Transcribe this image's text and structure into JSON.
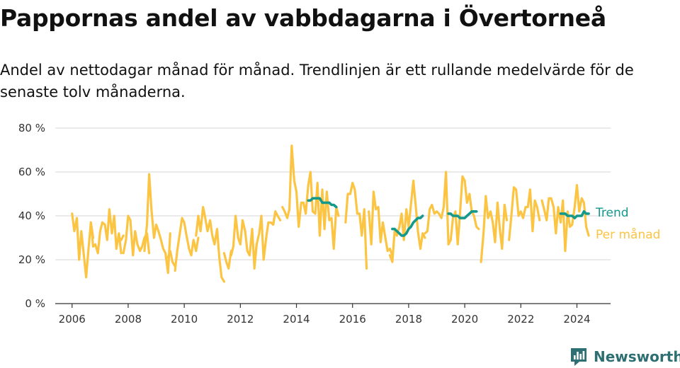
{
  "title": "Pappornas andel av vabbdagarna i Övertorneå",
  "subtitle": "Andel av nettodagar månad för månad. Trendlinjen är ett rullande medelvärde för de senaste tolv månaderna.",
  "brand": {
    "name": "Newsworthy",
    "icon": "bar-chart-logo-icon"
  },
  "colors": {
    "monthly": "#fcc443",
    "trend": "#14998a",
    "grid": "#dddddd",
    "axis": "#333333"
  },
  "chart_data": {
    "type": "line",
    "ylim": [
      0,
      80
    ],
    "yticks": [
      0,
      20,
      40,
      60,
      80
    ],
    "ytick_labels": [
      "0 %",
      "20 %",
      "40 %",
      "60 %",
      "80 %"
    ],
    "xlim": [
      2005.4,
      2025.2
    ],
    "xticks": [
      2006,
      2008,
      2010,
      2012,
      2014,
      2016,
      2018,
      2020,
      2022,
      2024
    ],
    "xtick_labels": [
      "2006",
      "2008",
      "2010",
      "2012",
      "2014",
      "2016",
      "2018",
      "2020",
      "2022",
      "2024"
    ],
    "grid": true,
    "legend_placement": "right-end-labels",
    "series": [
      {
        "name": "Per månad",
        "segments": [
          {
            "x": [
              2006.0,
              2006.08,
              2006.17,
              2006.25,
              2006.33,
              2006.42,
              2006.5,
              2006.58,
              2006.67,
              2006.75
            ],
            "y": [
              41,
              33,
              39,
              20,
              33,
              22,
              12,
              24,
              37,
              30
            ]
          },
          {
            "x": [
              2006.67,
              2006.75,
              2006.83,
              2006.92,
              2007.0,
              2007.08,
              2007.17,
              2007.25,
              2007.33,
              2007.42,
              2007.5,
              2007.58,
              2007.67,
              2007.75
            ],
            "y": [
              37,
              26,
              27,
              23,
              33,
              37,
              36,
              29,
              43,
              32,
              40,
              25,
              32,
              23
            ]
          },
          {
            "x": [
              2007.67,
              2007.75,
              2007.83
            ],
            "y": [
              30,
              29,
              31
            ]
          },
          {
            "x": [
              2007.83,
              2007.92,
              2008.0,
              2008.08,
              2008.17,
              2008.25,
              2008.33,
              2008.42,
              2008.5,
              2008.58,
              2008.67,
              2008.75
            ],
            "y": [
              23,
              29,
              40,
              38,
              22,
              33,
              27,
              24,
              26,
              30,
              32,
              23
            ]
          },
          {
            "x": [
              2008.58,
              2008.67,
              2008.75,
              2008.83,
              2008.92,
              2009.0,
              2009.08,
              2009.17,
              2009.25,
              2009.33,
              2009.42,
              2009.5
            ],
            "y": [
              24,
              36,
              59,
              43,
              30,
              36,
              33,
              29,
              25,
              23,
              14,
              32
            ]
          },
          {
            "x": [
              2009.42,
              2009.5,
              2009.58,
              2009.67
            ],
            "y": [
              21,
              24,
              19,
              17
            ]
          },
          {
            "x": [
              2009.67,
              2009.75,
              2009.83,
              2009.92,
              2010.0,
              2010.08,
              2010.17,
              2010.25,
              2010.33,
              2010.42,
              2010.5
            ],
            "y": [
              15,
              24,
              31,
              39,
              37,
              31,
              25,
              22,
              29,
              24,
              30
            ]
          },
          {
            "x": [
              2010.42,
              2010.5,
              2010.58,
              2010.67,
              2010.75,
              2010.83,
              2010.92,
              2011.0,
              2011.08,
              2011.17,
              2011.25,
              2011.33,
              2011.42
            ],
            "y": [
              31,
              40,
              33,
              44,
              39,
              33,
              38,
              31,
              27,
              34,
              21,
              12,
              10
            ]
          },
          {
            "x": [
              2011.42,
              2011.5,
              2011.58,
              2011.67
            ],
            "y": [
              23,
              19,
              16,
              24
            ]
          },
          {
            "x": [
              2011.67,
              2011.75,
              2011.83,
              2011.92,
              2012.0,
              2012.08,
              2012.17,
              2012.25,
              2012.33,
              2012.42,
              2012.5,
              2012.58
            ],
            "y": [
              22,
              26,
              40,
              30,
              27,
              38,
              33,
              24,
              22,
              34,
              17,
              27
            ]
          },
          {
            "x": [
              2012.5,
              2012.58,
              2012.67,
              2012.75,
              2012.83,
              2012.92,
              2013.0,
              2013.08,
              2013.17,
              2013.25
            ],
            "y": [
              16,
              27,
              32,
              40,
              20,
              30,
              37,
              37,
              36,
              42
            ]
          },
          {
            "x": [
              2013.17,
              2013.25,
              2013.33,
              2013.42
            ],
            "y": [
              36,
              42,
              40,
              38
            ]
          },
          {
            "x": [
              2013.5,
              2013.58,
              2013.67,
              2013.75,
              2013.83,
              2013.92,
              2014.0,
              2014.08,
              2014.17,
              2014.25,
              2014.33,
              2014.42,
              2014.5,
              2014.58,
              2014.67,
              2014.75,
              2014.83,
              2014.92,
              2015.0,
              2015.08,
              2015.17,
              2015.25,
              2015.33,
              2015.42,
              2015.5
            ],
            "y": [
              44,
              42,
              39,
              43,
              72,
              56,
              51,
              35,
              46,
              46,
              41,
              54,
              60,
              42,
              41,
              55,
              31,
              52,
              34,
              51,
              38,
              39,
              25,
              44,
              40
            ]
          },
          {
            "x": [
              2015.75,
              2015.83,
              2015.92,
              2016.0,
              2016.08,
              2016.17,
              2016.25,
              2016.33,
              2016.42,
              2016.5
            ],
            "y": [
              37,
              50,
              50,
              55,
              52,
              41,
              41,
              31,
              43,
              16
            ]
          },
          {
            "x": [
              2016.58,
              2016.67,
              2016.75,
              2016.83,
              2016.92,
              2017.0,
              2017.08,
              2017.17,
              2017.25,
              2017.33,
              2017.42
            ],
            "y": [
              42,
              27,
              51,
              43,
              44,
              28,
              37,
              30,
              24,
              25,
              22
            ]
          },
          {
            "x": [
              2017.33,
              2017.42,
              2017.5,
              2017.58,
              2017.67,
              2017.75,
              2017.83,
              2017.92,
              2018.0,
              2018.08,
              2018.17,
              2018.25,
              2018.33,
              2018.42,
              2018.5,
              2018.58
            ],
            "y": [
              22,
              19,
              33,
              31,
              35,
              41,
              29,
              43,
              35,
              45,
              56,
              45,
              33,
              25,
              32,
              30
            ]
          },
          {
            "x": [
              2018.58,
              2018.67,
              2018.75,
              2018.83,
              2018.92,
              2019.0,
              2019.08,
              2019.17,
              2019.25,
              2019.33,
              2019.42,
              2019.5,
              2019.58,
              2019.67,
              2019.75,
              2019.83,
              2019.92,
              2020.0,
              2020.08,
              2020.17,
              2020.25,
              2020.33,
              2020.42,
              2020.5
            ],
            "y": [
              32,
              33,
              43,
              45,
              41,
              42,
              41,
              39,
              44,
              60,
              27,
              29,
              39,
              42,
              27,
              41,
              58,
              56,
              46,
              50,
              42,
              40,
              35,
              34
            ]
          },
          {
            "x": [
              2020.58,
              2020.67,
              2020.75,
              2020.83,
              2020.92,
              2021.0,
              2021.08,
              2021.17,
              2021.25,
              2021.33,
              2021.42,
              2021.5
            ],
            "y": [
              19,
              32,
              49,
              39,
              42,
              37,
              28,
              46,
              34,
              25,
              45,
              38
            ]
          },
          {
            "x": [
              2021.58,
              2021.67,
              2021.75,
              2021.83,
              2021.92,
              2022.0,
              2022.08,
              2022.17,
              2022.25,
              2022.33,
              2022.42,
              2022.5,
              2022.58,
              2022.67
            ],
            "y": [
              29,
              41,
              53,
              52,
              40,
              42,
              39,
              44,
              44,
              52,
              33,
              47,
              44,
              38
            ]
          },
          {
            "x": [
              2022.75,
              2022.83,
              2022.92,
              2023.0,
              2023.08,
              2023.17,
              2023.25,
              2023.33,
              2023.42,
              2023.5,
              2023.58,
              2023.67,
              2023.75,
              2023.83,
              2023.92,
              2024.0,
              2024.08,
              2024.17,
              2024.25,
              2024.33,
              2024.42
            ],
            "y": [
              47,
              43,
              38,
              48,
              48,
              44,
              32,
              44,
              37,
              47,
              24,
              42,
              35,
              36,
              44,
              54,
              42,
              48,
              46,
              35,
              31
            ]
          }
        ]
      },
      {
        "name": "Trend",
        "segments": [
          {
            "x": [
              2014.42,
              2014.5,
              2014.58,
              2014.67,
              2014.75,
              2014.83,
              2014.92,
              2015.0,
              2015.08,
              2015.17,
              2015.25,
              2015.33,
              2015.42
            ],
            "y": [
              47,
              47,
              48,
              48,
              48,
              48,
              46,
              46,
              46,
              46,
              45,
              45,
              44
            ]
          },
          {
            "x": [
              2017.42,
              2017.5,
              2017.58,
              2017.67,
              2017.75,
              2017.83,
              2017.92,
              2018.0,
              2018.08,
              2018.17,
              2018.25,
              2018.33,
              2018.42,
              2018.5
            ],
            "y": [
              34,
              34,
              33,
              32,
              31,
              31,
              32,
              34,
              35,
              37,
              38,
              39,
              39,
              40
            ]
          },
          {
            "x": [
              2019.42,
              2019.5,
              2019.58,
              2019.67,
              2019.75,
              2019.83,
              2019.92,
              2020.0,
              2020.08,
              2020.17,
              2020.25,
              2020.33,
              2020.42
            ],
            "y": [
              41,
              41,
              40,
              40,
              40,
              39,
              39,
              39,
              40,
              41,
              42,
              42,
              42
            ]
          },
          {
            "x": [
              2023.42,
              2023.5,
              2023.58,
              2023.67,
              2023.75,
              2023.83,
              2023.92,
              2024.0,
              2024.08,
              2024.17,
              2024.25,
              2024.33,
              2024.42
            ],
            "y": [
              41,
              41,
              41,
              40,
              40,
              40,
              39,
              40,
              40,
              40,
              42,
              41,
              41
            ]
          }
        ]
      }
    ]
  }
}
